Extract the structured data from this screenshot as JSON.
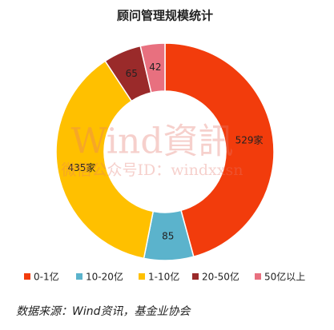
{
  "chart_data": {
    "type": "donut",
    "title": "顾问管理规模统计",
    "categories": [
      "0-1亿",
      "10-20亿",
      "1-10亿",
      "20-50亿",
      "50亿以上"
    ],
    "values": [
      529,
      85,
      435,
      65,
      42
    ],
    "value_labels": [
      "529家",
      "85",
      "435家",
      "65",
      "42"
    ],
    "colors": [
      "#f23c0c",
      "#5bb3cc",
      "#ffc000",
      "#9a2a2a",
      "#e8707f"
    ],
    "legend": "bottom",
    "source": "数据来源：Wind资讯，基金业协会",
    "watermark": [
      "Wind資訊",
      "微信公众号ID：windxxsn"
    ]
  }
}
